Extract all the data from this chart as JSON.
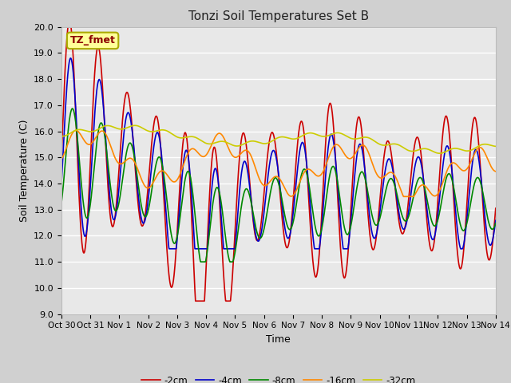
{
  "title": "Tonzi Soil Temperatures Set B",
  "xlabel": "Time",
  "ylabel": "Soil Temperature (C)",
  "ylim": [
    9.0,
    20.0
  ],
  "yticks": [
    9.0,
    10.0,
    11.0,
    12.0,
    13.0,
    14.0,
    15.0,
    16.0,
    17.0,
    18.0,
    19.0,
    20.0
  ],
  "xtick_labels": [
    "Oct 30",
    "Oct 31",
    "Nov 1",
    "Nov 2",
    "Nov 3",
    "Nov 4",
    "Nov 5",
    "Nov 6",
    "Nov 7",
    "Nov 8",
    "Nov 9",
    "Nov 10",
    "Nov 11",
    "Nov 12",
    "Nov 13",
    "Nov 14"
  ],
  "series_colors": [
    "#cc0000",
    "#0000cc",
    "#008800",
    "#ff8800",
    "#cccc00"
  ],
  "series_labels": [
    "-2cm",
    "-4cm",
    "-8cm",
    "-16cm",
    "-32cm"
  ],
  "annotation_text": "TZ_fmet",
  "annotation_bg": "#ffff99",
  "annotation_border": "#aaaa00",
  "fig_bg": "#d0d0d0",
  "plot_bg": "#e8e8e8",
  "grid_color": "#ffffff"
}
